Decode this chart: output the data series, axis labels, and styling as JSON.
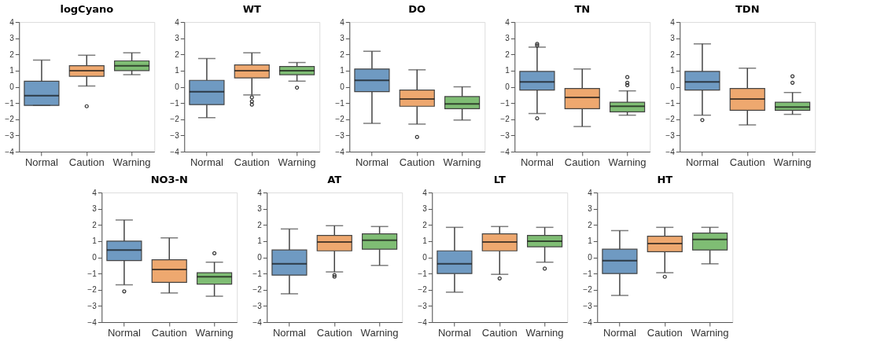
{
  "chart_data": [
    {
      "type": "box",
      "title": "logCyano",
      "categories": [
        "Normal",
        "Caution",
        "Warning"
      ],
      "colors": [
        "#6f9ac2",
        "#eea86f",
        "#7fbd74"
      ],
      "ylim": [
        -4,
        4
      ],
      "yticks": [
        {
          "value": -4,
          "label": "−4"
        },
        {
          "value": -3,
          "label": "−3"
        },
        {
          "value": -2,
          "label": "−2"
        },
        {
          "value": -1,
          "label": "−1"
        },
        0,
        1,
        2,
        3,
        4
      ],
      "grid": false,
      "boxes": [
        {
          "low": -1.15,
          "q1": -1.15,
          "median": -0.55,
          "q3": 0.35,
          "high": 1.65
        },
        {
          "low": 0.05,
          "q1": 0.65,
          "median": 1.0,
          "q3": 1.3,
          "high": 1.95,
          "outliers": [
            -1.2
          ]
        },
        {
          "low": 0.75,
          "q1": 1.0,
          "median": 1.3,
          "q3": 1.6,
          "high": 2.1
        }
      ]
    },
    {
      "type": "box",
      "title": "WT",
      "categories": [
        "Normal",
        "Caution",
        "Warning"
      ],
      "colors": [
        "#6f9ac2",
        "#eea86f",
        "#7fbd74"
      ],
      "ylim": [
        -4,
        4
      ],
      "yticks": [
        {
          "value": -4,
          "label": "−4"
        },
        {
          "value": -3,
          "label": "−3"
        },
        {
          "value": -2,
          "label": "−2"
        },
        {
          "value": -1,
          "label": "−1"
        },
        0,
        1,
        2,
        3,
        4
      ],
      "grid": false,
      "boxes": [
        {
          "low": -1.9,
          "q1": -1.1,
          "median": -0.3,
          "q3": 0.4,
          "high": 1.75
        },
        {
          "low": -0.5,
          "q1": 0.55,
          "median": 1.0,
          "q3": 1.35,
          "high": 2.1,
          "outliers": [
            -0.65,
            -0.9,
            -1.1
          ]
        },
        {
          "low": 0.35,
          "q1": 0.75,
          "median": 1.0,
          "q3": 1.25,
          "high": 1.5,
          "outliers": [
            -0.05
          ]
        }
      ]
    },
    {
      "type": "box",
      "title": "DO",
      "categories": [
        "Normal",
        "Caution",
        "Warning"
      ],
      "colors": [
        "#6f9ac2",
        "#eea86f",
        "#7fbd74"
      ],
      "ylim": [
        -4,
        4
      ],
      "yticks": [
        {
          "value": -4,
          "label": "−4"
        },
        {
          "value": -3,
          "label": "−3"
        },
        {
          "value": -2,
          "label": "−2"
        },
        {
          "value": -1,
          "label": "−1"
        },
        0,
        1,
        2,
        3,
        4
      ],
      "grid": false,
      "boxes": [
        {
          "low": -2.25,
          "q1": -0.3,
          "median": 0.4,
          "q3": 1.1,
          "high": 2.2
        },
        {
          "low": -2.3,
          "q1": -1.2,
          "median": -0.75,
          "q3": -0.2,
          "high": 1.05,
          "outliers": [
            -3.1
          ]
        },
        {
          "low": -2.05,
          "q1": -1.35,
          "median": -1.05,
          "q3": -0.6,
          "high": 0.0
        }
      ]
    },
    {
      "type": "box",
      "title": "TN",
      "categories": [
        "Normal",
        "Caution",
        "Warning"
      ],
      "colors": [
        "#6f9ac2",
        "#eea86f",
        "#7fbd74"
      ],
      "ylim": [
        -4,
        4
      ],
      "yticks": [
        {
          "value": -4,
          "label": "−4"
        },
        {
          "value": -3,
          "label": "−3"
        },
        {
          "value": -2,
          "label": "−2"
        },
        {
          "value": -1,
          "label": "−1"
        },
        0,
        1,
        2,
        3,
        4
      ],
      "grid": false,
      "boxes": [
        {
          "low": -1.65,
          "q1": -0.2,
          "median": 0.3,
          "q3": 0.95,
          "high": 2.45,
          "outliers": [
            -1.95,
            2.55,
            2.65
          ]
        },
        {
          "low": -2.45,
          "q1": -1.35,
          "median": -0.65,
          "q3": -0.1,
          "high": 1.1
        },
        {
          "low": -1.75,
          "q1": -1.55,
          "median": -1.2,
          "q3": -0.95,
          "high": -0.25,
          "outliers": [
            0.1,
            0.25,
            0.6
          ]
        }
      ]
    },
    {
      "type": "box",
      "title": "TDN",
      "categories": [
        "Normal",
        "Caution",
        "Warning"
      ],
      "colors": [
        "#6f9ac2",
        "#eea86f",
        "#7fbd74"
      ],
      "ylim": [
        -4,
        4
      ],
      "yticks": [
        {
          "value": -4,
          "label": "−4"
        },
        {
          "value": -3,
          "label": "−3"
        },
        {
          "value": -2,
          "label": "−2"
        },
        {
          "value": -1,
          "label": "−1"
        },
        0,
        1,
        2,
        3,
        4
      ],
      "grid": false,
      "boxes": [
        {
          "low": -1.75,
          "q1": -0.2,
          "median": 0.3,
          "q3": 0.95,
          "high": 2.65,
          "outliers": [
            -2.05
          ]
        },
        {
          "low": -2.35,
          "q1": -1.45,
          "median": -0.75,
          "q3": -0.1,
          "high": 1.15
        },
        {
          "low": -1.7,
          "q1": -1.45,
          "median": -1.25,
          "q3": -0.95,
          "high": -0.35,
          "outliers": [
            0.25,
            0.65
          ]
        }
      ]
    },
    {
      "type": "box",
      "title": "NO3-N",
      "categories": [
        "Normal",
        "Caution",
        "Warning"
      ],
      "colors": [
        "#6f9ac2",
        "#eea86f",
        "#7fbd74"
      ],
      "ylim": [
        -4,
        4
      ],
      "yticks": [
        {
          "value": -4,
          "label": "−4"
        },
        {
          "value": -3,
          "label": "−3"
        },
        {
          "value": -2,
          "label": "−2"
        },
        {
          "value": -1,
          "label": "−1"
        },
        0,
        1,
        2,
        3,
        4
      ],
      "grid": false,
      "boxes": [
        {
          "low": -1.7,
          "q1": -0.2,
          "median": 0.45,
          "q3": 1.0,
          "high": 2.3,
          "outliers": [
            -2.1
          ]
        },
        {
          "low": -2.2,
          "q1": -1.55,
          "median": -0.75,
          "q3": -0.15,
          "high": 1.2
        },
        {
          "low": -2.4,
          "q1": -1.65,
          "median": -1.2,
          "q3": -0.95,
          "high": -0.3,
          "outliers": [
            0.25
          ]
        }
      ]
    },
    {
      "type": "box",
      "title": "AT",
      "categories": [
        "Normal",
        "Caution",
        "Warning"
      ],
      "colors": [
        "#6f9ac2",
        "#eea86f",
        "#7fbd74"
      ],
      "ylim": [
        -4,
        4
      ],
      "yticks": [
        {
          "value": -4,
          "label": "−4"
        },
        {
          "value": -3,
          "label": "−3"
        },
        {
          "value": -2,
          "label": "−2"
        },
        {
          "value": -1,
          "label": "−1"
        },
        0,
        1,
        2,
        3,
        4
      ],
      "grid": false,
      "boxes": [
        {
          "low": -2.25,
          "q1": -1.1,
          "median": -0.4,
          "q3": 0.45,
          "high": 1.75
        },
        {
          "low": -0.9,
          "q1": 0.4,
          "median": 0.95,
          "q3": 1.35,
          "high": 1.95,
          "outliers": [
            -1.1,
            -1.2
          ]
        },
        {
          "low": -0.5,
          "q1": 0.5,
          "median": 1.05,
          "q3": 1.45,
          "high": 1.9
        }
      ]
    },
    {
      "type": "box",
      "title": "LT",
      "categories": [
        "Normal",
        "Caution",
        "Warning"
      ],
      "colors": [
        "#6f9ac2",
        "#eea86f",
        "#7fbd74"
      ],
      "ylim": [
        -4,
        4
      ],
      "yticks": [
        {
          "value": -4,
          "label": "−4"
        },
        {
          "value": -3,
          "label": "−3"
        },
        {
          "value": -2,
          "label": "−2"
        },
        {
          "value": -1,
          "label": "−1"
        },
        0,
        1,
        2,
        3,
        4
      ],
      "grid": false,
      "boxes": [
        {
          "low": -2.15,
          "q1": -1.0,
          "median": -0.4,
          "q3": 0.4,
          "high": 1.85
        },
        {
          "low": -1.05,
          "q1": 0.4,
          "median": 0.95,
          "q3": 1.45,
          "high": 1.9,
          "outliers": [
            -1.3
          ]
        },
        {
          "low": -0.3,
          "q1": 0.65,
          "median": 1.0,
          "q3": 1.35,
          "high": 1.85,
          "outliers": [
            -0.7
          ]
        }
      ]
    },
    {
      "type": "box",
      "title": "HT",
      "categories": [
        "Normal",
        "Caution",
        "Warning"
      ],
      "colors": [
        "#6f9ac2",
        "#eea86f",
        "#7fbd74"
      ],
      "ylim": [
        -4,
        4
      ],
      "yticks": [
        {
          "value": -4,
          "label": "−4"
        },
        {
          "value": -3,
          "label": "−3"
        },
        {
          "value": -2,
          "label": "−2"
        },
        {
          "value": -1,
          "label": "−1"
        },
        0,
        1,
        2,
        3,
        4
      ],
      "grid": false,
      "boxes": [
        {
          "low": -2.35,
          "q1": -1.0,
          "median": -0.2,
          "q3": 0.5,
          "high": 1.65
        },
        {
          "low": -0.95,
          "q1": 0.35,
          "median": 0.85,
          "q3": 1.3,
          "high": 1.85,
          "outliers": [
            -1.2
          ]
        },
        {
          "low": -0.4,
          "q1": 0.45,
          "median": 1.1,
          "q3": 1.5,
          "high": 1.85
        }
      ]
    }
  ]
}
